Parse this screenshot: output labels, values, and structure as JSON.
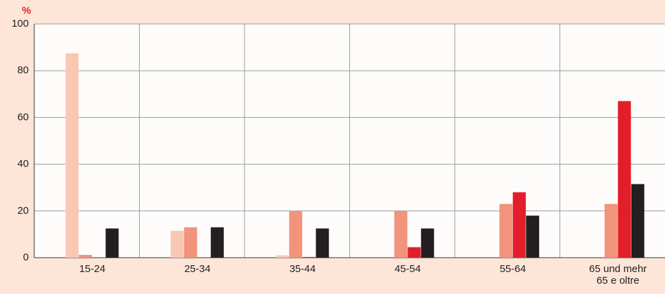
{
  "chart_data": {
    "type": "bar",
    "y_label": "%",
    "categories": [
      "15-24",
      "25-34",
      "35-44",
      "45-54",
      "55-64",
      "65 und mehr\n65 e oltre"
    ],
    "series": [
      {
        "color": "#f9c8b2",
        "values": [
          87.5,
          11.5,
          1,
          0,
          0,
          0
        ]
      },
      {
        "color": "#f2937b",
        "values": [
          1.2,
          13,
          20,
          20,
          23,
          23
        ]
      },
      {
        "color": "#e31e2a",
        "values": [
          0,
          0,
          0.3,
          4.5,
          28,
          67
        ]
      },
      {
        "color": "#231f20",
        "values": [
          12.5,
          13,
          12.5,
          12.5,
          18,
          31.5
        ]
      }
    ],
    "ylim": [
      0,
      100
    ],
    "yticks": [
      0,
      20,
      40,
      60,
      80,
      100
    ],
    "grid": true
  }
}
